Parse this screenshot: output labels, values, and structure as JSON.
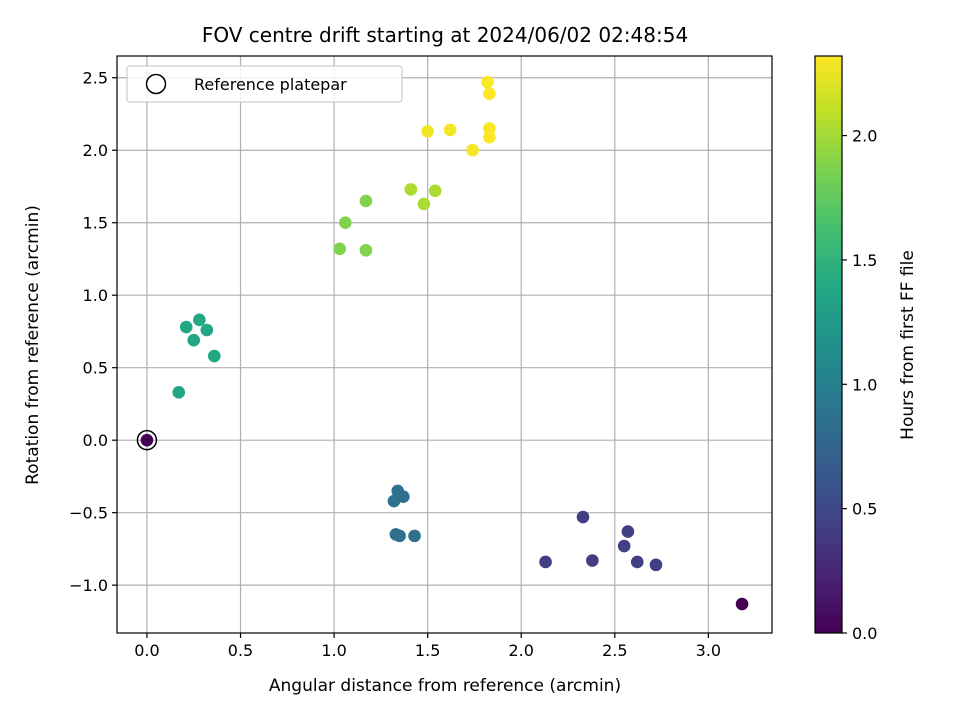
{
  "chart_data": {
    "type": "scatter",
    "title": "FOV centre drift starting at 2024/06/02 02:48:54",
    "xlabel": "Angular distance from reference (arcmin)",
    "ylabel": "Rotation from reference (arcmin)",
    "xlim": [
      -0.16,
      3.34
    ],
    "ylim": [
      -1.33,
      2.65
    ],
    "xticks": [
      0.0,
      0.5,
      1.0,
      1.5,
      2.0,
      2.5,
      3.0
    ],
    "xtick_labels": [
      "0.0",
      "0.5",
      "1.0",
      "1.5",
      "2.0",
      "2.5",
      "3.0"
    ],
    "yticks": [
      -1.0,
      -0.5,
      0.0,
      0.5,
      1.0,
      1.5,
      2.0,
      2.5
    ],
    "ytick_labels": [
      "−1.0",
      "−0.5",
      "0.0",
      "0.5",
      "1.0",
      "1.5",
      "2.0",
      "2.5"
    ],
    "grid": true,
    "legend": {
      "placement": "upper-left",
      "entries": [
        {
          "label": "Reference platepar",
          "marker": "hollow-circle"
        }
      ]
    },
    "reference_point": {
      "x": 0.0,
      "y": 0.0
    },
    "colorbar": {
      "label": "Hours from first FF file",
      "colormap": "viridis",
      "range": [
        0.0,
        2.32
      ],
      "ticks": [
        0.0,
        0.5,
        1.0,
        1.5,
        2.0
      ],
      "tick_labels": [
        "0.0",
        "0.5",
        "1.0",
        "1.5",
        "2.0"
      ]
    },
    "points": [
      {
        "x": 3.18,
        "y": -1.13,
        "c": 0.0
      },
      {
        "x": 2.13,
        "y": -0.84,
        "c": 0.42
      },
      {
        "x": 2.33,
        "y": -0.53,
        "c": 0.42
      },
      {
        "x": 2.38,
        "y": -0.83,
        "c": 0.42
      },
      {
        "x": 2.55,
        "y": -0.73,
        "c": 0.43
      },
      {
        "x": 2.57,
        "y": -0.63,
        "c": 0.43
      },
      {
        "x": 2.62,
        "y": -0.84,
        "c": 0.43
      },
      {
        "x": 2.72,
        "y": -0.86,
        "c": 0.42
      },
      {
        "x": 1.32,
        "y": -0.42,
        "c": 0.85
      },
      {
        "x": 1.34,
        "y": -0.35,
        "c": 0.85
      },
      {
        "x": 1.37,
        "y": -0.39,
        "c": 0.85
      },
      {
        "x": 1.33,
        "y": -0.65,
        "c": 0.85
      },
      {
        "x": 1.35,
        "y": -0.66,
        "c": 0.85
      },
      {
        "x": 1.43,
        "y": -0.66,
        "c": 0.85
      },
      {
        "x": 0.17,
        "y": 0.33,
        "c": 1.38
      },
      {
        "x": 0.21,
        "y": 0.78,
        "c": 1.38
      },
      {
        "x": 0.25,
        "y": 0.69,
        "c": 1.38
      },
      {
        "x": 0.28,
        "y": 0.83,
        "c": 1.38
      },
      {
        "x": 0.32,
        "y": 0.76,
        "c": 1.38
      },
      {
        "x": 0.36,
        "y": 0.58,
        "c": 1.38
      },
      {
        "x": 1.03,
        "y": 1.32,
        "c": 1.88
      },
      {
        "x": 1.06,
        "y": 1.5,
        "c": 1.88
      },
      {
        "x": 1.17,
        "y": 1.31,
        "c": 1.88
      },
      {
        "x": 1.17,
        "y": 1.65,
        "c": 1.88
      },
      {
        "x": 1.41,
        "y": 1.73,
        "c": 2.03
      },
      {
        "x": 1.48,
        "y": 1.63,
        "c": 2.03
      },
      {
        "x": 1.54,
        "y": 1.72,
        "c": 2.03
      },
      {
        "x": 1.5,
        "y": 2.13,
        "c": 2.28
      },
      {
        "x": 1.62,
        "y": 2.14,
        "c": 2.28
      },
      {
        "x": 1.74,
        "y": 2.0,
        "c": 2.28
      },
      {
        "x": 1.82,
        "y": 2.47,
        "c": 2.31
      },
      {
        "x": 1.83,
        "y": 2.39,
        "c": 2.31
      },
      {
        "x": 1.83,
        "y": 2.15,
        "c": 2.31
      },
      {
        "x": 1.83,
        "y": 2.09,
        "c": 2.31
      },
      {
        "x": 0.0,
        "y": 0.0,
        "c": 0.0
      }
    ]
  }
}
